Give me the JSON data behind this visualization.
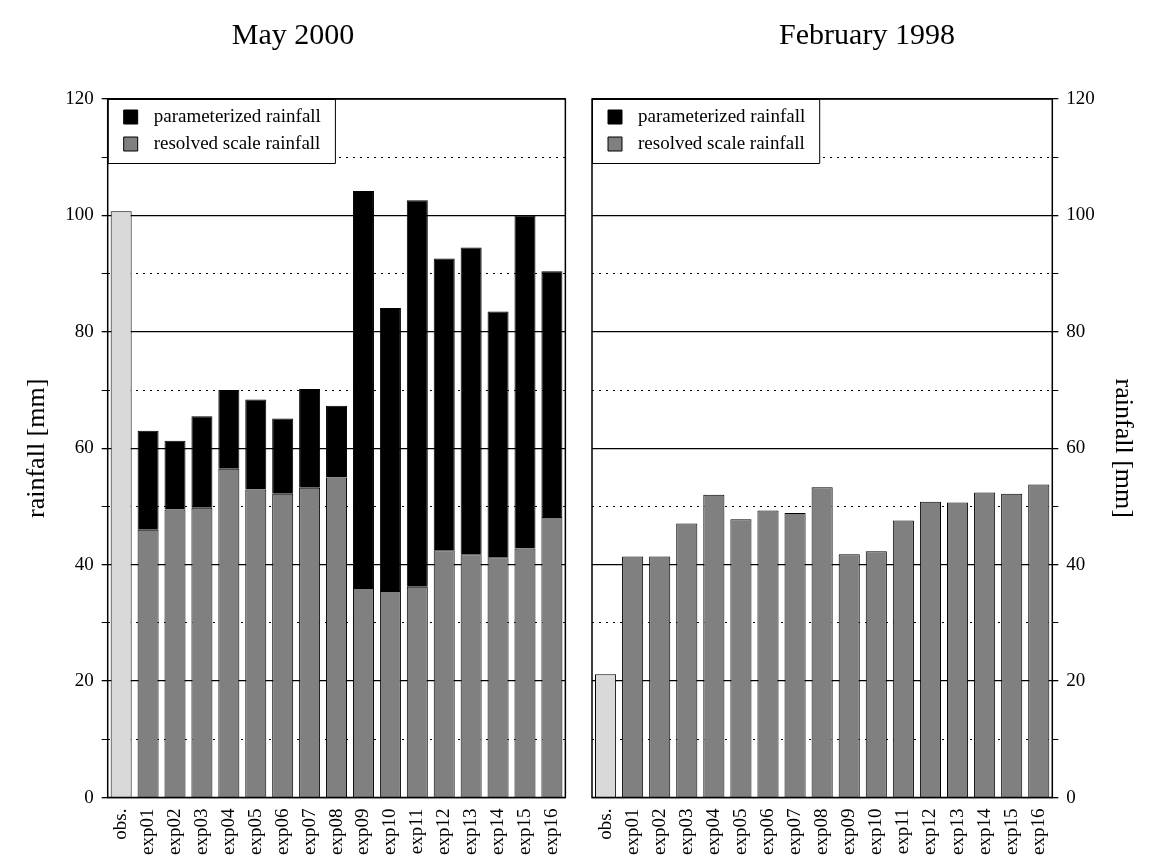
{
  "chart_data": [
    {
      "type": "bar",
      "title": "May 2000",
      "ylabel": "rainfall [mm]",
      "stacked": true,
      "legend": "top left",
      "grid": "y",
      "categories": [
        "obs.",
        "exp01",
        "exp02",
        "exp03",
        "exp04",
        "exp05",
        "exp06",
        "exp07",
        "exp08",
        "exp09",
        "exp10",
        "exp11",
        "exp12",
        "exp13",
        "exp14",
        "exp15",
        "exp16"
      ],
      "ylim": [
        0,
        120
      ],
      "yticks": [
        0,
        {
          "value": 10,
          "label": null
        },
        20,
        {
          "value": 30,
          "label": null
        },
        40,
        {
          "value": 50,
          "label": null
        },
        60,
        {
          "value": 70,
          "label": null
        },
        80,
        {
          "value": 90,
          "label": null
        },
        100,
        {
          "value": 110,
          "label": null
        },
        120
      ],
      "series": [
        {
          "color": "#d9d9d9",
          "values": [
            100.7,
            null,
            null,
            null,
            null,
            null,
            null,
            null,
            null,
            null,
            null,
            null,
            null,
            null,
            null,
            null,
            null
          ]
        },
        {
          "name": "resolved scale rainfall",
          "color": "#808080",
          "values": [
            null,
            46,
            49.5,
            49.8,
            56.5,
            52.9,
            52.2,
            53.2,
            55,
            36,
            35.5,
            36.2,
            42.5,
            41.8,
            41.3,
            42.8,
            48.2
          ]
        },
        {
          "name": "parameterized rainfall",
          "color": "#000000",
          "values": [
            null,
            17,
            11.8,
            15.7,
            13.5,
            15.5,
            12.9,
            17,
            12.3,
            68.2,
            48.6,
            66.4,
            50.1,
            52.7,
            42.2,
            57.2,
            42.2
          ]
        }
      ]
    },
    {
      "type": "bar",
      "title": "February 1998",
      "y2label": "rainfall [mm]",
      "stacked": true,
      "legend": "top left",
      "grid": "y",
      "categories": [
        "obs.",
        "exp01",
        "exp02",
        "exp03",
        "exp04",
        "exp05",
        "exp06",
        "exp07",
        "exp08",
        "exp09",
        "exp10",
        "exp11",
        "exp12",
        "exp13",
        "exp14",
        "exp15",
        "exp16"
      ],
      "y2lim": [
        0,
        120
      ],
      "y2ticks": [
        0,
        {
          "value": 10,
          "label": null
        },
        20,
        {
          "value": 30,
          "label": null
        },
        40,
        {
          "value": 50,
          "label": null
        },
        60,
        {
          "value": 70,
          "label": null
        },
        80,
        {
          "value": 90,
          "label": null
        },
        100,
        {
          "value": 110,
          "label": null
        },
        120
      ],
      "series": [
        {
          "axis": "y2",
          "color": "#d9d9d9",
          "values": [
            21.2,
            null,
            null,
            null,
            null,
            null,
            null,
            null,
            null,
            null,
            null,
            null,
            null,
            null,
            null,
            null,
            null
          ]
        },
        {
          "axis": "y2",
          "name": "resolved scale rainfall",
          "color": "#808080",
          "values": [
            null,
            41.4,
            41.4,
            47.1,
            52,
            47.8,
            49.3,
            48.9,
            53.3,
            41.8,
            42.3,
            47.6,
            50.8,
            50.7,
            52.4,
            52.2,
            53.8
          ]
        },
        {
          "axis": "y2",
          "name": "parameterized rainfall",
          "color": "#000000",
          "values": [
            null,
            0,
            0,
            0,
            0,
            0,
            0,
            0,
            0,
            0,
            0,
            0,
            0,
            0,
            0,
            0,
            0
          ]
        }
      ]
    }
  ]
}
